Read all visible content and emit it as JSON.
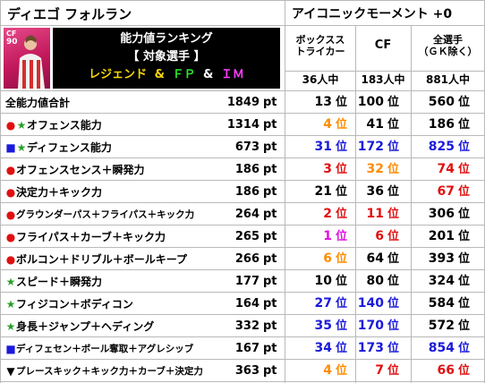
{
  "player_name": "ディエゴ フォルラン",
  "card_type": "アイコニックモーメント +0",
  "card": {
    "position": "CF",
    "rating": "90"
  },
  "banner": {
    "line1": "能力値ランキング",
    "line2": "【 対象選手 】",
    "line3_a": "レジェンド",
    "amp": "&",
    "line3_b": "ＦＰ",
    "line3_c": "ＩＭ"
  },
  "columns": [
    {
      "name": "ボックスストライカー",
      "name_l1": "ボックスス",
      "name_l2": "トライカー",
      "count": "36人中"
    },
    {
      "name": "CF",
      "count": "183人中"
    },
    {
      "name": "全選手（ＧＫ除く）",
      "name_l1": "全選手",
      "name_l2": "（ＧＫ除く）",
      "count": "881人中"
    }
  ],
  "unit_pt": "pt",
  "unit_rank": "位",
  "rows": [
    {
      "marker": "",
      "label": "全能力値合計",
      "value": "1849",
      "ranks": [
        "13",
        "100",
        "560"
      ],
      "colors": [
        "#000000",
        "#000000",
        "#000000"
      ]
    },
    {
      "marker": "●★",
      "label": "オフェンス能力",
      "value": "1314",
      "ranks": [
        "4",
        "41",
        "186"
      ],
      "colors": [
        "#ff8c00",
        "#000000",
        "#000000"
      ]
    },
    {
      "marker": "■★",
      "label": "ディフェンス能力",
      "value": "673",
      "ranks": [
        "31",
        "172",
        "825"
      ],
      "colors": [
        "#1a1adb",
        "#1a1adb",
        "#1a1adb"
      ]
    },
    {
      "marker": "●",
      "label": "オフェンスセンス＋瞬発力",
      "value": "186",
      "ranks": [
        "3",
        "32",
        "74"
      ],
      "colors": [
        "#e01010",
        "#ff8c00",
        "#e01010"
      ]
    },
    {
      "marker": "●",
      "label": "決定力＋キック力",
      "value": "186",
      "ranks": [
        "21",
        "36",
        "67"
      ],
      "colors": [
        "#000000",
        "#000000",
        "#e01010"
      ]
    },
    {
      "marker": "●",
      "label": "グラウンダーパス＋フライパス＋キック力",
      "value": "264",
      "ranks": [
        "2",
        "11",
        "306"
      ],
      "colors": [
        "#e01010",
        "#e01010",
        "#000000"
      ]
    },
    {
      "marker": "●",
      "label": "フライパス＋カーブ＋キック力",
      "value": "265",
      "ranks": [
        "1",
        "6",
        "201"
      ],
      "colors": [
        "#e010e0",
        "#e01010",
        "#000000"
      ]
    },
    {
      "marker": "●",
      "label": "ボルコン＋ドリブル＋ボールキープ",
      "value": "266",
      "ranks": [
        "6",
        "64",
        "393"
      ],
      "colors": [
        "#ff8c00",
        "#000000",
        "#000000"
      ]
    },
    {
      "marker": "★",
      "label": "スピード＋瞬発力",
      "value": "177",
      "ranks": [
        "10",
        "80",
        "324"
      ],
      "colors": [
        "#000000",
        "#000000",
        "#000000"
      ]
    },
    {
      "marker": "★",
      "label": "フィジコン＋ボディコン",
      "value": "164",
      "ranks": [
        "27",
        "140",
        "584"
      ],
      "colors": [
        "#1a1adb",
        "#1a1adb",
        "#000000"
      ]
    },
    {
      "marker": "★",
      "label": "身長＋ジャンプ＋ヘディング",
      "value": "332",
      "ranks": [
        "35",
        "170",
        "572"
      ],
      "colors": [
        "#1a1adb",
        "#1a1adb",
        "#000000"
      ]
    },
    {
      "marker": "■",
      "label": "ディフェセン＋ボール奪取＋アグレシッブ",
      "value": "167",
      "ranks": [
        "34",
        "173",
        "854"
      ],
      "colors": [
        "#1a1adb",
        "#1a1adb",
        "#1a1adb"
      ]
    },
    {
      "marker": "▼",
      "label": "プレースキック＋キック力＋カーブ＋決定力",
      "value": "363",
      "ranks": [
        "4",
        "7",
        "66"
      ],
      "colors": [
        "#ff8c00",
        "#e01010",
        "#e01010"
      ]
    }
  ],
  "marker_colors": {
    "●": "#e01010",
    "★": "#2aa02a",
    "■": "#1a1adb",
    "▼": "#000000"
  }
}
